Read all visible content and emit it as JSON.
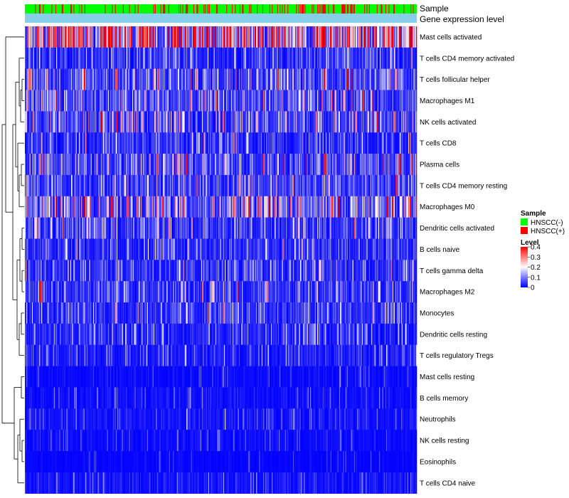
{
  "chart_data": {
    "type": "heatmap",
    "annotations": {
      "sample_label": "Sample",
      "level_label": "Gene expression level"
    },
    "rows": [
      {
        "name": "Mast cells activated",
        "mean": 0.28
      },
      {
        "name": "T cells CD4 memory activated",
        "mean": 0.05
      },
      {
        "name": "T cells follicular helper",
        "mean": 0.09
      },
      {
        "name": "Macrophages M1",
        "mean": 0.08
      },
      {
        "name": "NK cells activated",
        "mean": 0.08
      },
      {
        "name": "T cells CD8",
        "mean": 0.05
      },
      {
        "name": "Plasma cells",
        "mean": 0.08
      },
      {
        "name": "T cells CD4 memory resting",
        "mean": 0.07
      },
      {
        "name": "Macrophages M0",
        "mean": 0.12
      },
      {
        "name": "Dendritic cells activated",
        "mean": 0.06
      },
      {
        "name": "B cells naive",
        "mean": 0.05
      },
      {
        "name": "T cells gamma delta",
        "mean": 0.05
      },
      {
        "name": "Macrophages M2",
        "mean": 0.06
      },
      {
        "name": "Monocytes",
        "mean": 0.05
      },
      {
        "name": "Dendritic cells resting",
        "mean": 0.04
      },
      {
        "name": "T cells regulatory  Tregs",
        "mean": 0.03
      },
      {
        "name": "Mast cells resting",
        "mean": 0.01
      },
      {
        "name": "B cells memory",
        "mean": 0.015
      },
      {
        "name": "Neutrophils",
        "mean": 0.02
      },
      {
        "name": "NK cells resting",
        "mean": 0.01
      },
      {
        "name": "Eosinophils",
        "mean": 0.005
      },
      {
        "name": "T cells CD4 naive",
        "mean": 0.02
      }
    ],
    "legend": {
      "sample": {
        "title": "Sample",
        "entries": [
          {
            "label": "HNSCC(-)",
            "color": "#00ff00"
          },
          {
            "label": "HNSCC(+)",
            "color": "#ff0000"
          }
        ]
      },
      "level": {
        "title": "Level",
        "ticks": [
          "0.4",
          "0.3",
          "0.2",
          "0.1",
          "0"
        ],
        "tick_values": [
          0.4,
          0.3,
          0.2,
          0.1,
          0
        ],
        "range": [
          0,
          0.4
        ]
      }
    },
    "colors": {
      "low": "#0000ff",
      "mid": "#ffffff",
      "high": "#ff0000",
      "sample_neg": "#00ff00",
      "sample_pos": "#ff0000",
      "level_bar": "#87ceeb"
    },
    "num_samples": 500,
    "positive_fraction": 0.2
  }
}
